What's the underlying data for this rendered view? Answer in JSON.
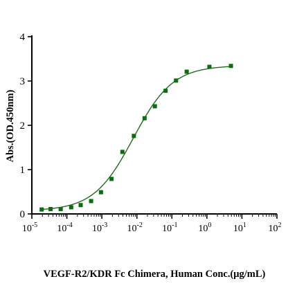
{
  "chart_data": {
    "type": "scatter",
    "title": "",
    "xlabel": "VEGF-R2/KDR Fc Chimera, Human Conc.(μg/mL)",
    "ylabel": "Abs.(OD.450nm)",
    "x_scale": "log",
    "xlim": [
      1e-05,
      100
    ],
    "ylim": [
      0,
      4
    ],
    "x_ticks": [
      {
        "base": "10",
        "exp": "-5"
      },
      {
        "base": "10",
        "exp": "-4"
      },
      {
        "base": "10",
        "exp": "-3"
      },
      {
        "base": "10",
        "exp": "-2"
      },
      {
        "base": "10",
        "exp": "-1"
      },
      {
        "base": "10",
        "exp": "0"
      },
      {
        "base": "10",
        "exp": "1"
      },
      {
        "base": "10",
        "exp": "2"
      }
    ],
    "y_ticks": [
      "0",
      "1",
      "2",
      "3",
      "4"
    ],
    "grid": false,
    "legend": "none",
    "series": [
      {
        "points": [
          {
            "x": 1.91e-05,
            "y": 0.1
          },
          {
            "x": 3.43e-05,
            "y": 0.11
          },
          {
            "x": 6.67e-05,
            "y": 0.11
          },
          {
            "x": 0.000133,
            "y": 0.15
          },
          {
            "x": 0.000248,
            "y": 0.2
          },
          {
            "x": 0.000492,
            "y": 0.29
          },
          {
            "x": 0.000944,
            "y": 0.49
          },
          {
            "x": 0.00189,
            "y": 0.79
          },
          {
            "x": 0.00386,
            "y": 1.4
          },
          {
            "x": 0.00819,
            "y": 1.76
          },
          {
            "x": 0.0166,
            "y": 2.16
          },
          {
            "x": 0.0326,
            "y": 2.43
          },
          {
            "x": 0.066,
            "y": 2.78
          },
          {
            "x": 0.131,
            "y": 3.01
          },
          {
            "x": 0.265,
            "y": 3.21
          },
          {
            "x": 1.18,
            "y": 3.32
          },
          {
            "x": 4.86,
            "y": 3.34
          }
        ],
        "fit_curve": {
          "type": "4PL",
          "bottom": 0.07,
          "top": 3.35,
          "ec50": 0.0079,
          "hill": 0.77
        },
        "color": "#0a6e0a",
        "line_color": "#1f6b1f"
      }
    ]
  }
}
